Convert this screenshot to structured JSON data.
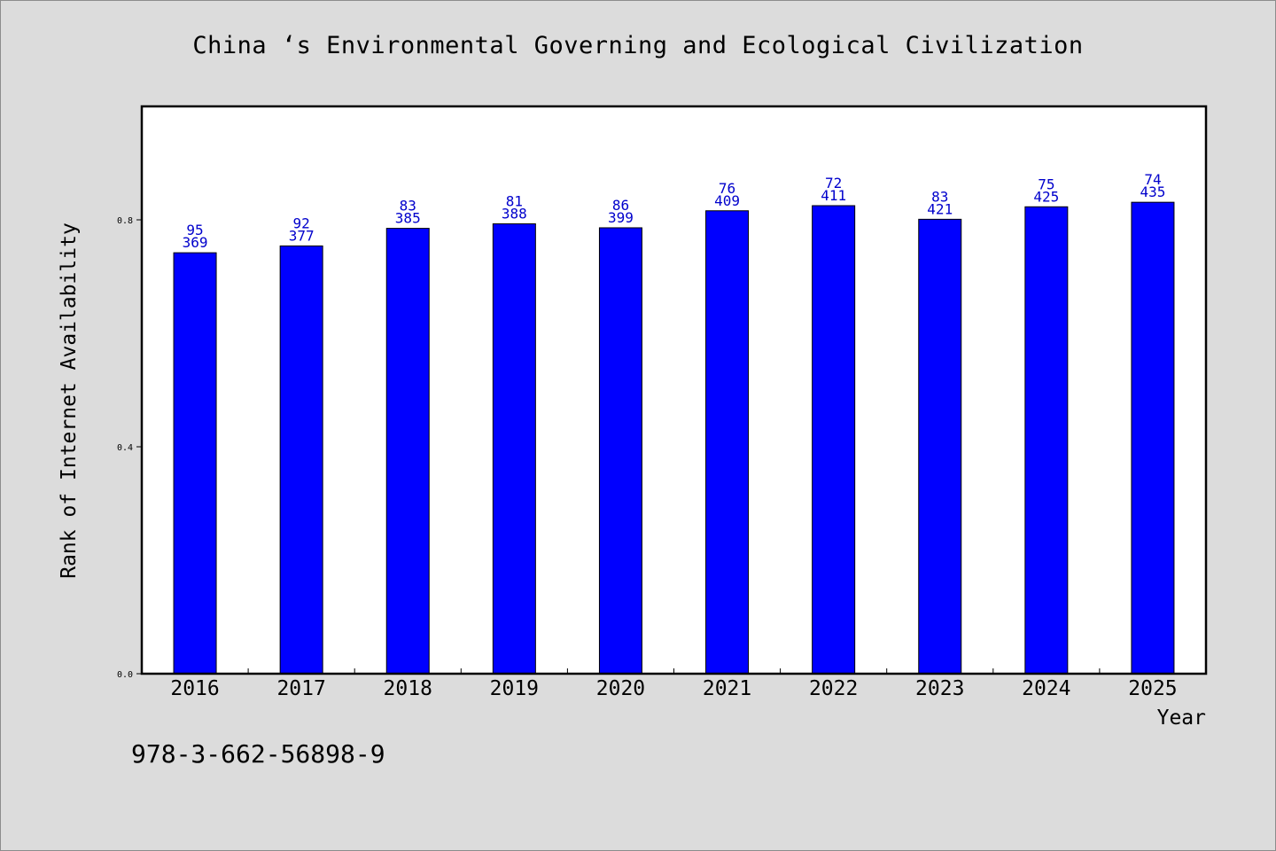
{
  "page": {
    "footer_text": "978-3-662-56898-9"
  },
  "chart_data": {
    "type": "bar",
    "title": "China ‘s Environmental Governing and Ecological Civilization",
    "xlabel": "Year",
    "ylabel": "Rank of Internet Availability",
    "categories": [
      "2016",
      "2017",
      "2018",
      "2019",
      "2020",
      "2021",
      "2022",
      "2023",
      "2024",
      "2025"
    ],
    "values": [
      0.742,
      0.754,
      0.785,
      0.793,
      0.786,
      0.816,
      0.825,
      0.801,
      0.823,
      0.831
    ],
    "label_top": [
      "95",
      "92",
      "83",
      "81",
      "86",
      "76",
      "72",
      "83",
      "75",
      "74"
    ],
    "label_bottom": [
      "369",
      "377",
      "385",
      "388",
      "399",
      "409",
      "411",
      "421",
      "425",
      "435"
    ],
    "ylim": [
      0,
      1.0
    ],
    "yticks": [
      0.0,
      0.4,
      0.8
    ],
    "ytick_labels": [
      "0.0",
      "0.4",
      "0.8"
    ],
    "grid": false,
    "bar_color": "#0000ff",
    "label_color": "#0000cc"
  }
}
